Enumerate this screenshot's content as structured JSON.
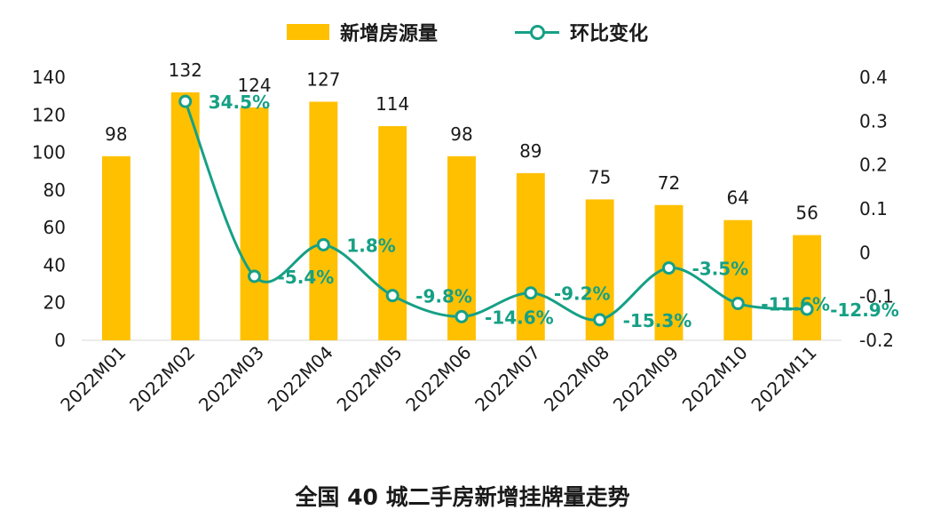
{
  "colors": {
    "bar": "#FFC000",
    "line": "#16A085",
    "text": "#1a1a1a"
  },
  "legend": {
    "bar_label": "新增房源量",
    "line_label": "环比变化"
  },
  "footer": {
    "title": "全国 40 城二手房新增挂牌量走势"
  },
  "chart_data": {
    "type": "bar",
    "title": "全国 40 城二手房新增挂牌量走势",
    "categories": [
      "2022M01",
      "2022M02",
      "2022M03",
      "2022M04",
      "2022M05",
      "2022M06",
      "2022M07",
      "2022M08",
      "2022M09",
      "2022M10",
      "2022M11"
    ],
    "series": [
      {
        "name": "新增房源量",
        "type": "bar",
        "axis": "left",
        "values": [
          98,
          132,
          124,
          127,
          114,
          98,
          89,
          75,
          72,
          64,
          56
        ],
        "labels": [
          "98",
          "132",
          "124",
          "127",
          "114",
          "98",
          "89",
          "75",
          "72",
          "64",
          "56"
        ]
      },
      {
        "name": "环比变化",
        "type": "line",
        "axis": "right",
        "values": [
          null,
          0.345,
          -0.054,
          0.018,
          -0.098,
          -0.146,
          -0.092,
          -0.153,
          -0.035,
          -0.116,
          -0.129
        ],
        "labels": [
          "",
          "34.5%",
          "-5.4%",
          "1.8%",
          "-9.8%",
          "-14.6%",
          "-9.2%",
          "-15.3%",
          "-3.5%",
          "-11.6%",
          "-12.9%"
        ]
      }
    ],
    "y_left": {
      "ylim": [
        0,
        140
      ],
      "ticks": [
        "0",
        "20",
        "40",
        "60",
        "80",
        "100",
        "120",
        "140"
      ]
    },
    "y_right": {
      "ylim": [
        -0.2,
        0.4
      ],
      "ticks": [
        "-0.2",
        "-0.1",
        "0",
        "0.1",
        "0.2",
        "0.3",
        "0.4"
      ]
    },
    "legend_position": "top-center",
    "grid": false
  }
}
